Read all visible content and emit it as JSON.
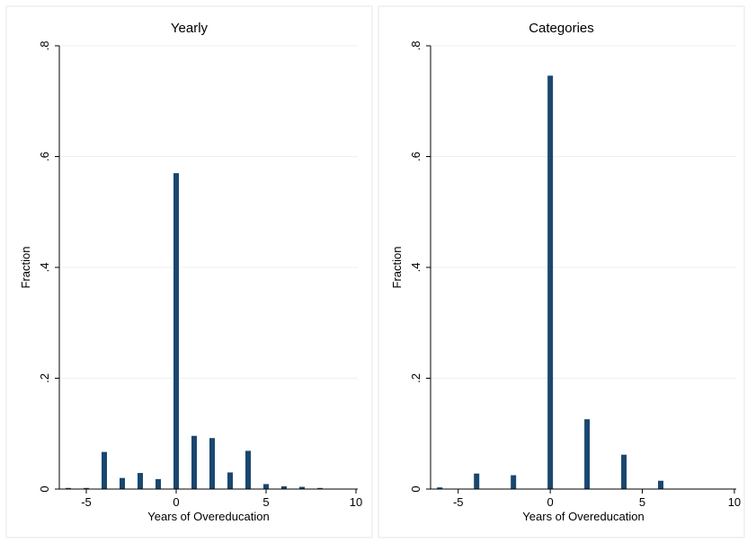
{
  "colors": {
    "bar": "#1a476f",
    "grid": "#eaf2f3",
    "panel_border": "#e6e6e6",
    "background": "#ffffff"
  },
  "chart_data": [
    {
      "type": "bar",
      "title": "Yearly",
      "xlabel": "Years of Overeducation",
      "ylabel": "Fraction",
      "xlim": [
        -6.5,
        10.1
      ],
      "ylim": [
        0,
        0.8
      ],
      "xticks": [
        -5,
        0,
        5,
        10
      ],
      "xtick_labels": [
        "-5",
        "0",
        "5",
        "10"
      ],
      "yticks": [
        0,
        0.2,
        0.4,
        0.6,
        0.8
      ],
      "ytick_labels": [
        "0",
        ".2",
        ".4",
        ".6",
        ".8"
      ],
      "grid": true,
      "x": [
        -6,
        -5,
        -4,
        -3,
        -2,
        -1,
        0,
        1,
        2,
        3,
        4,
        5,
        6,
        7,
        8
      ],
      "values": [
        0.002,
        0.002,
        0.067,
        0.02,
        0.029,
        0.018,
        0.57,
        0.096,
        0.092,
        0.03,
        0.069,
        0.009,
        0.005,
        0.004,
        0.002
      ]
    },
    {
      "type": "bar",
      "title": "Categories",
      "xlabel": "Years of Overeducation",
      "ylabel": "Fraction",
      "xlim": [
        -6.5,
        10.1
      ],
      "ylim": [
        0,
        0.8
      ],
      "xticks": [
        -5,
        0,
        5,
        10
      ],
      "xtick_labels": [
        "-5",
        "0",
        "5",
        "10"
      ],
      "yticks": [
        0,
        0.2,
        0.4,
        0.6,
        0.8
      ],
      "ytick_labels": [
        "0",
        ".2",
        ".4",
        ".6",
        ".8"
      ],
      "grid": true,
      "x": [
        -6,
        -4,
        -2,
        0,
        2,
        4,
        6
      ],
      "values": [
        0.003,
        0.028,
        0.025,
        0.746,
        0.126,
        0.062,
        0.015
      ]
    }
  ]
}
